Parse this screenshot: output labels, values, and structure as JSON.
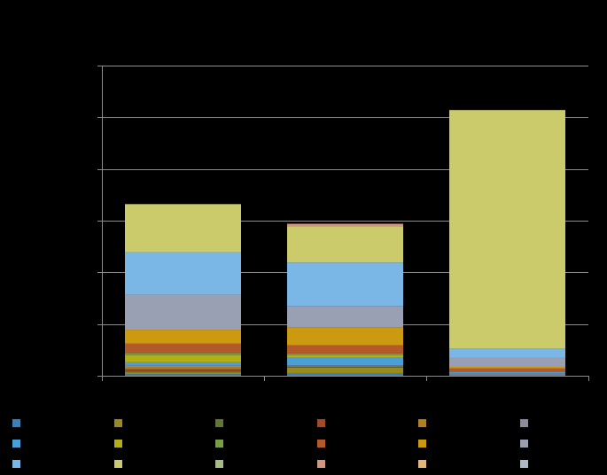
{
  "chart_data": {
    "type": "bar",
    "stacked": true,
    "categories": [
      "",
      "",
      ""
    ],
    "ylim": [
      0,
      6
    ],
    "y_gridlines": [
      1,
      2,
      3,
      4,
      5,
      6
    ],
    "grid": true,
    "legend_placement": "bottom",
    "title": "",
    "xlabel": "",
    "ylabel": "",
    "series": [
      {
        "color": "#3c80b8",
        "values": [
          0.03,
          0.04,
          0.02
        ]
      },
      {
        "color": "#9a8a1e",
        "values": [
          0.03,
          0.12,
          0.0
        ]
      },
      {
        "color": "#5f7a30",
        "values": [
          0.03,
          0.01,
          0.0
        ]
      },
      {
        "color": "#a24a26",
        "values": [
          0.04,
          0.01,
          0.0
        ]
      },
      {
        "color": "#b0821f",
        "values": [
          0.04,
          0.01,
          0.0
        ]
      },
      {
        "color": "#8a8d9e",
        "values": [
          0.03,
          0.01,
          0.02
        ]
      },
      {
        "color": "#4a9fd9",
        "values": [
          0.06,
          0.16,
          0.04
        ]
      },
      {
        "color": "#b3ad16",
        "values": [
          0.14,
          0.04,
          0.0
        ]
      },
      {
        "color": "#78a040",
        "values": [
          0.04,
          0.03,
          0.0
        ]
      },
      {
        "color": "#b35a2a",
        "values": [
          0.18,
          0.16,
          0.06
        ]
      },
      {
        "color": "#cc9a10",
        "values": [
          0.27,
          0.34,
          0.04
        ]
      },
      {
        "color": "#99a0b4",
        "values": [
          0.68,
          0.42,
          0.18
        ]
      },
      {
        "color": "#7ab6e6",
        "values": [
          0.82,
          0.84,
          0.17
        ]
      },
      {
        "color": "#cbcb6c",
        "values": [
          0.93,
          0.7,
          4.61
        ]
      },
      {
        "color": "#a5bd80",
        "values": [
          0.0,
          0.0,
          0.0
        ]
      },
      {
        "color": "#d39680",
        "values": [
          0.0,
          0.05,
          0.0
        ]
      },
      {
        "color": "#e2b878",
        "values": [
          0.0,
          0.0,
          0.0
        ]
      },
      {
        "color": "#b0b7c8",
        "values": [
          0.0,
          0.0,
          0.0
        ]
      }
    ]
  }
}
